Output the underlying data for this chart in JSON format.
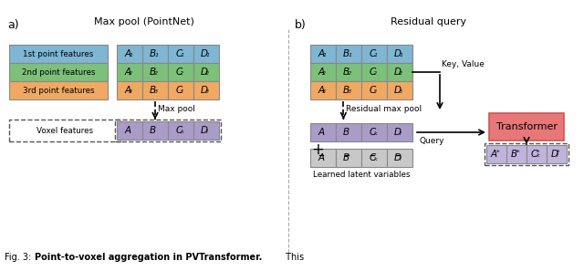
{
  "title_a": "Max pool (PointNet)",
  "title_b": "Residual query",
  "label_a": "a)",
  "label_b": "b)",
  "color_blue": "#7EB6D4",
  "color_green": "#7DC07A",
  "color_orange": "#F0A962",
  "color_purple": "#A99CC8",
  "color_purple_light": "#C0B4DC",
  "color_gray": "#C8C8C8",
  "color_red_box": "#E87878",
  "bg_color": "#FFFFFF",
  "row_labels": [
    "1st point features",
    "2nd point features",
    "3rd point features"
  ],
  "cols": [
    "A",
    "B",
    "C",
    "D"
  ],
  "voxel_label": "Voxel features",
  "max_pool_label": "Max pool",
  "residual_max_pool_label": "Residual max pool",
  "key_value_label": "Key, Value",
  "query_label": "Query",
  "transformer_label": "Transformer",
  "learned_latent_label": "Learned latent variables",
  "caption_prefix": "Fig. 3: ",
  "caption_bold": "Point-to-voxel aggregation in PVTransformer.",
  "caption_normal": " This"
}
